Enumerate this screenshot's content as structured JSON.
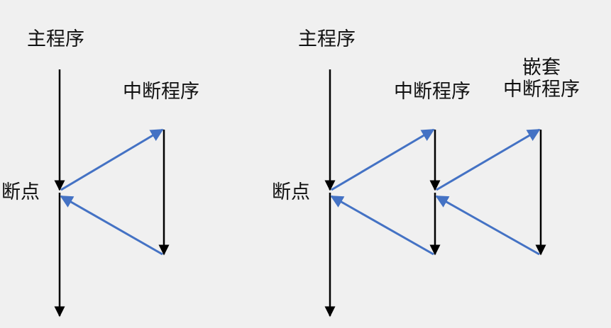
{
  "left": {
    "main_label": "主程序",
    "interrupt_label": "中断程序",
    "breakpoint_label": "断点"
  },
  "right": {
    "main_label": "主程序",
    "interrupt_label": "中断程序",
    "nested_label_line1": "嵌套",
    "nested_label_line2": "中断程序",
    "breakpoint_label": "断点"
  },
  "colors": {
    "background": "#f0f0f0",
    "program_line": "#000000",
    "transfer_arrow": "#4472c4",
    "text": "#111111"
  }
}
